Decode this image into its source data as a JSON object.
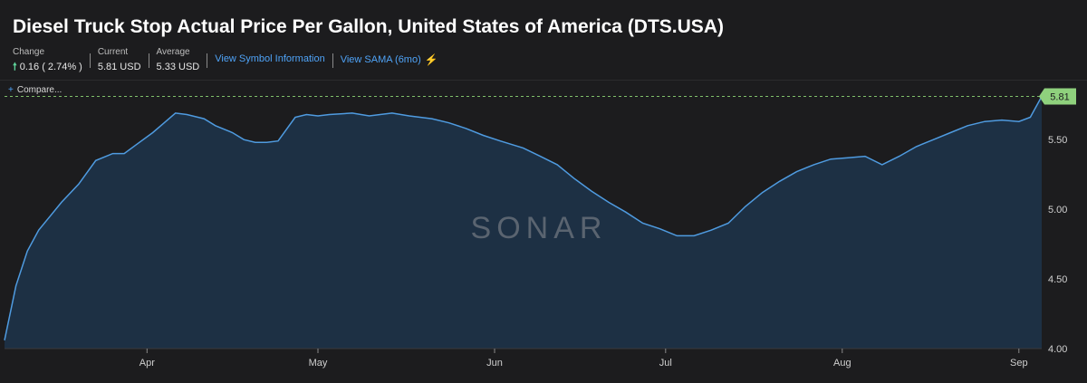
{
  "header": {
    "title": "Diesel Truck Stop Actual Price Per Gallon, United States of America (DTS.USA)",
    "change_label": "Change",
    "change_arrow": "🠕",
    "change_value": "0.16 ( 2.74% )",
    "current_label": "Current",
    "current_value": "5.81 USD",
    "average_label": "Average",
    "average_value": "5.33 USD",
    "view_symbol_link": "View Symbol Information",
    "view_sama_link": "View SAMA (6mo)",
    "sama_icon": "sama-icon"
  },
  "compare_label": "Compare...",
  "watermark": "SONAR",
  "colors": {
    "line": "#4f9be0",
    "fill": "#1e3147",
    "last_value_badge": "#8fd17d",
    "reference_line": "#7fbf6a",
    "link": "#4fa3f7"
  },
  "chart_data": {
    "type": "area",
    "title": "",
    "xlabel": "",
    "ylabel": "",
    "ylim": [
      4.0,
      5.8
    ],
    "y_ticks": [
      "5.50",
      "5.00",
      "4.50",
      "4.00"
    ],
    "x_tick_labels": [
      "Apr",
      "May",
      "Jun",
      "Jul",
      "Aug",
      "Sep"
    ],
    "x_tick_dates": [
      "2022-04-01",
      "2022-05-01",
      "2022-06-01",
      "2022-07-01",
      "2022-08-01",
      "2022-09-01"
    ],
    "last_value_label": "5.81",
    "last_value": 5.81,
    "grid": false,
    "series": [
      {
        "x": [
          "2022-03-07",
          "2022-03-09",
          "2022-03-11",
          "2022-03-13",
          "2022-03-15",
          "2022-03-17",
          "2022-03-20",
          "2022-03-23",
          "2022-03-26",
          "2022-03-28",
          "2022-03-30",
          "2022-04-02",
          "2022-04-04",
          "2022-04-06",
          "2022-04-08",
          "2022-04-11",
          "2022-04-13",
          "2022-04-16",
          "2022-04-18",
          "2022-04-20",
          "2022-04-22",
          "2022-04-24",
          "2022-04-27",
          "2022-04-29",
          "2022-05-01",
          "2022-05-03",
          "2022-05-07",
          "2022-05-10",
          "2022-05-14",
          "2022-05-17",
          "2022-05-21",
          "2022-05-24",
          "2022-05-27",
          "2022-05-30",
          "2022-06-02",
          "2022-06-06",
          "2022-06-09",
          "2022-06-12",
          "2022-06-15",
          "2022-06-18",
          "2022-06-21",
          "2022-06-24",
          "2022-06-27",
          "2022-06-30",
          "2022-07-03",
          "2022-07-06",
          "2022-07-09",
          "2022-07-12",
          "2022-07-15",
          "2022-07-18",
          "2022-07-21",
          "2022-07-24",
          "2022-07-27",
          "2022-07-30",
          "2022-08-02",
          "2022-08-05",
          "2022-08-08",
          "2022-08-11",
          "2022-08-14",
          "2022-08-17",
          "2022-08-20",
          "2022-08-23",
          "2022-08-26",
          "2022-08-29",
          "2022-09-01",
          "2022-09-03",
          "2022-09-05"
        ],
        "values": [
          4.06,
          4.45,
          4.7,
          4.85,
          4.95,
          5.05,
          5.18,
          5.35,
          5.4,
          5.4,
          5.46,
          5.55,
          5.62,
          5.69,
          5.68,
          5.65,
          5.6,
          5.55,
          5.5,
          5.48,
          5.48,
          5.49,
          5.66,
          5.68,
          5.67,
          5.68,
          5.69,
          5.67,
          5.69,
          5.67,
          5.65,
          5.62,
          5.58,
          5.53,
          5.49,
          5.44,
          5.38,
          5.32,
          5.22,
          5.13,
          5.05,
          4.98,
          4.9,
          4.86,
          4.81,
          4.81,
          4.85,
          4.9,
          5.02,
          5.12,
          5.2,
          5.27,
          5.32,
          5.36,
          5.37,
          5.38,
          5.32,
          5.38,
          5.45,
          5.5,
          5.55,
          5.6,
          5.63,
          5.64,
          5.63,
          5.66,
          5.81
        ]
      }
    ]
  }
}
